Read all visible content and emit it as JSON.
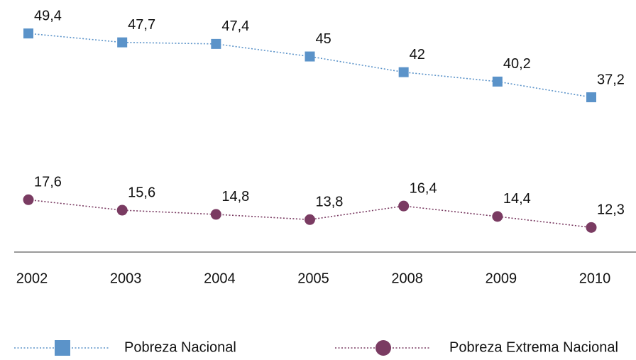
{
  "chart_data": {
    "type": "line",
    "categories": [
      "2002",
      "2003",
      "2004",
      "2005",
      "2008",
      "2009",
      "2010"
    ],
    "ylim": [
      8,
      52
    ],
    "series": [
      {
        "name": "Pobreza Nacional",
        "color": "#5b93c9",
        "marker": "square",
        "values": [
          49.4,
          47.7,
          47.4,
          45,
          42,
          40.2,
          37.2
        ],
        "value_labels": [
          "49,4",
          "47,7",
          "47,4",
          "45",
          "42",
          "40,2",
          "37,2"
        ]
      },
      {
        "name": "Pobreza Extrema Nacional",
        "color": "#7a3b62",
        "marker": "circle",
        "values": [
          17.6,
          15.6,
          14.8,
          13.8,
          16.4,
          14.4,
          12.3
        ],
        "value_labels": [
          "17,6",
          "15,6",
          "14,8",
          "13,8",
          "16,4",
          "14,4",
          "12,3"
        ]
      }
    ]
  }
}
